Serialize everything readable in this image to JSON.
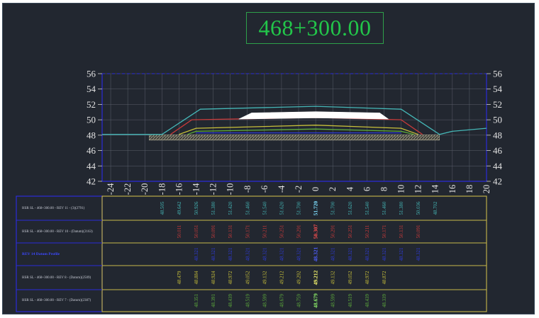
{
  "station": "468+300.00",
  "colors": {
    "background": "#222730",
    "frame_blue": "#2b2bd8",
    "table_border": "#c8b84a",
    "grid": "#5a5f6b",
    "station_green": "#22c64a",
    "cyan": "#45b6b6",
    "red": "#c83a3a",
    "yellow": "#c8c03a",
    "green": "#5fae3c",
    "blue": "#2e3ad8",
    "white": "#ffffff"
  },
  "chart_data": {
    "type": "cross-section",
    "x": [
      -24,
      -22,
      -20,
      -18,
      -16,
      -14,
      -12,
      -10,
      -8,
      -6,
      -4,
      -2,
      0,
      2,
      4,
      6,
      8,
      10,
      12,
      14,
      16,
      18,
      20
    ],
    "xlim": [
      -25,
      20
    ],
    "ylim": [
      42,
      56
    ],
    "y_ticks": [
      42,
      44,
      46,
      48,
      50,
      52,
      54,
      56
    ],
    "lines": [
      {
        "color": "cyan",
        "points": [
          [
            -25,
            48.1
          ],
          [
            -18,
            48.1
          ],
          [
            -13.5,
            51.38
          ],
          [
            0,
            51.75
          ],
          [
            10,
            51.38
          ],
          [
            14.5,
            48.1
          ],
          [
            16,
            48.5
          ],
          [
            20,
            48.9
          ]
        ]
      },
      {
        "color": "red",
        "points": [
          [
            -17,
            48.1
          ],
          [
            -14.5,
            50.0
          ],
          [
            0,
            50.3
          ],
          [
            10,
            50.0
          ],
          [
            12.5,
            48.1
          ]
        ]
      },
      {
        "color": "yellow",
        "points": [
          [
            -16,
            48.1
          ],
          [
            -14,
            48.9
          ],
          [
            0,
            49.3
          ],
          [
            10,
            48.9
          ],
          [
            12,
            48.1
          ]
        ]
      },
      {
        "color": "green",
        "points": [
          [
            -15,
            48.1
          ],
          [
            -14,
            48.5
          ],
          [
            0,
            48.8
          ],
          [
            10,
            48.5
          ],
          [
            11.5,
            48.1
          ]
        ]
      },
      {
        "color": "blue",
        "points": [
          [
            -14,
            48.3
          ],
          [
            10,
            48.3
          ]
        ]
      }
    ],
    "pavement": {
      "points": [
        [
          -9,
          50.1
        ],
        [
          -7.5,
          50.9
        ],
        [
          0,
          51.05
        ],
        [
          7.5,
          50.9
        ],
        [
          8.5,
          50.1
        ],
        [
          0,
          50.25
        ]
      ]
    },
    "existing_band": {
      "x_range": [
        -19.5,
        14.5
      ],
      "y_range": [
        47.35,
        48.05
      ]
    }
  },
  "table": {
    "x_positions": [
      -18,
      -16,
      -14,
      -12,
      -10,
      -8,
      -6,
      -4,
      -2,
      0,
      2,
      4,
      6,
      8,
      10,
      12,
      14
    ],
    "rows": [
      {
        "label": "HSR SL - 468+300.00 - REV 11 - (3)(2791)",
        "color": "cyan",
        "highlight": false,
        "values": [
          "48.505",
          "49.642",
          "50.926",
          "51.380",
          "51.420",
          "51.460",
          "51.540",
          "51.620",
          "51.700",
          "51.720",
          "51.700",
          "51.620",
          "51.540",
          "51.460",
          "51.380",
          "50.036",
          "48.702"
        ]
      },
      {
        "label": "HSR SL - 468+300.00 - REV 10 - (Datum)(2163)",
        "color": "red",
        "highlight": false,
        "values": [
          "",
          "50.011",
          "50.051",
          "50.091",
          "50.131",
          "50.171",
          "50.211",
          "50.251",
          "50.291",
          "50.307",
          "50.291",
          "50.251",
          "50.211",
          "50.171",
          "50.131",
          "50.091",
          ""
        ]
      },
      {
        "label": "REV 14 Datum Profile",
        "color": "blue",
        "highlight": true,
        "values": [
          "",
          "",
          "48.321",
          "48.321",
          "48.321",
          "48.321",
          "48.321",
          "48.321",
          "48.321",
          "48.321",
          "48.321",
          "48.321",
          "48.321",
          "48.321",
          "48.321",
          "48.321",
          ""
        ]
      },
      {
        "label": "HSR SL - 468+300.00 - REV 8 - (Datum)(2509)",
        "color": "yellow",
        "highlight": false,
        "values": [
          "",
          "48.479",
          "48.884",
          "48.924",
          "48.972",
          "49.052",
          "49.132",
          "49.212",
          "49.292",
          "49.212",
          "49.132",
          "49.052",
          "48.972",
          "48.872",
          "",
          "",
          ""
        ]
      },
      {
        "label": "HSR SL - 468+300.00 - REV 7 - (Datum)(2387)",
        "color": "green",
        "highlight": false,
        "values": [
          "",
          "",
          "48.351",
          "48.391",
          "48.439",
          "48.519",
          "48.599",
          "48.679",
          "48.759",
          "48.679",
          "48.599",
          "48.519",
          "48.439",
          "48.339",
          "",
          "",
          ""
        ]
      }
    ]
  }
}
